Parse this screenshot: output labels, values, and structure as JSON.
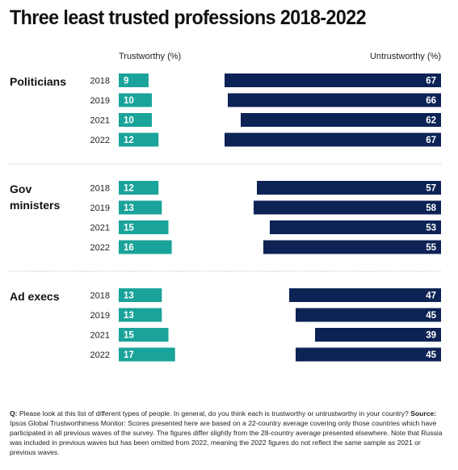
{
  "title": "Three least trusted professions 2018-2022",
  "columns": {
    "left": "Trustworthy (%)",
    "right": "Untrustworthy (%)"
  },
  "colors": {
    "trust": "#1aa39a",
    "untrust": "#0d2355",
    "divider": "#bbbbbb"
  },
  "chart_data": {
    "type": "bar",
    "title": "Three least trusted professions 2018-2022",
    "series_labels": [
      "Trustworthy (%)",
      "Untrustworthy (%)"
    ],
    "groups": [
      {
        "name": "Politicians",
        "years": [
          "2018",
          "2019",
          "2021",
          "2022"
        ],
        "trust": [
          9,
          10,
          10,
          12
        ],
        "untrust": [
          67,
          66,
          62,
          67
        ]
      },
      {
        "name": "Gov ministers",
        "years": [
          "2018",
          "2019",
          "2021",
          "2022"
        ],
        "trust": [
          12,
          13,
          15,
          16
        ],
        "untrust": [
          57,
          58,
          53,
          55
        ]
      },
      {
        "name": "Ad execs",
        "years": [
          "2018",
          "2019",
          "2021",
          "2022"
        ],
        "trust": [
          13,
          13,
          15,
          17
        ],
        "untrust": [
          47,
          45,
          39,
          45
        ]
      }
    ]
  },
  "footnote": {
    "q_label": "Q:",
    "q_text": " Please look at this list of different types of people. In general, do you think each is trustworthy or untrustworthy in your country? ",
    "source_label": "Source:",
    "source_text": " Ipsos Global Trustworthiness Monitor: Scores presented here are based on a 22-country average covering only those countries which have participated in all previous waves of the survey. The figures differ slightly from the 28-country average presented elsewhere. Note that Russia was included in previous waves but has been omitted from 2022, meaning the 2022 figures do not reflect the same sample as 2021 or previous waves."
  }
}
